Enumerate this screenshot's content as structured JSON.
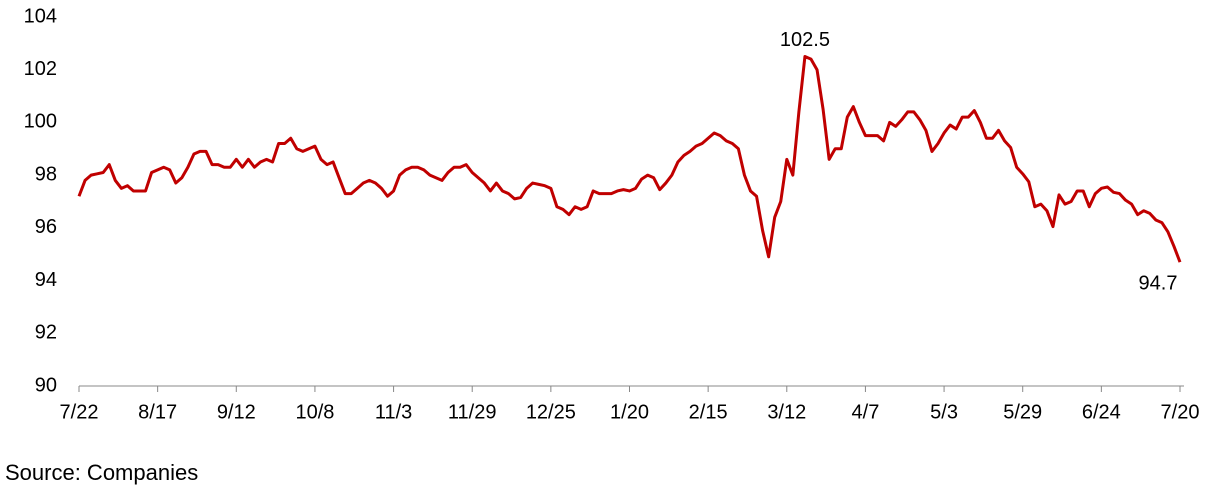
{
  "chart_data": {
    "type": "line",
    "source": "Source: Companies",
    "categories": [
      "7/22",
      null,
      null,
      null,
      null,
      null,
      null,
      null,
      null,
      null,
      null,
      null,
      null,
      "8/17",
      null,
      null,
      null,
      null,
      null,
      null,
      null,
      null,
      null,
      null,
      null,
      null,
      "9/12",
      null,
      null,
      null,
      null,
      null,
      null,
      null,
      null,
      null,
      null,
      null,
      null,
      "10/8",
      null,
      null,
      null,
      null,
      null,
      null,
      null,
      null,
      null,
      null,
      null,
      null,
      "11/3",
      null,
      null,
      null,
      null,
      null,
      null,
      null,
      null,
      null,
      null,
      null,
      null,
      "11/29",
      null,
      null,
      null,
      null,
      null,
      null,
      null,
      null,
      null,
      null,
      null,
      null,
      "12/25",
      null,
      null,
      null,
      null,
      null,
      null,
      null,
      null,
      null,
      null,
      null,
      null,
      "1/20",
      null,
      null,
      null,
      null,
      null,
      null,
      null,
      null,
      null,
      null,
      null,
      null,
      "2/15",
      null,
      null,
      null,
      null,
      null,
      null,
      null,
      null,
      null,
      null,
      null,
      null,
      "3/12",
      null,
      null,
      null,
      null,
      null,
      null,
      null,
      null,
      null,
      null,
      null,
      null,
      "4/7",
      null,
      null,
      null,
      null,
      null,
      null,
      null,
      null,
      null,
      null,
      null,
      null,
      "5/3",
      null,
      null,
      null,
      null,
      null,
      null,
      null,
      null,
      null,
      null,
      null,
      null,
      "5/29",
      null,
      null,
      null,
      null,
      null,
      null,
      null,
      null,
      null,
      null,
      null,
      null,
      "6/24",
      null,
      null,
      null,
      null,
      null,
      null,
      null,
      null,
      null,
      null,
      null,
      null,
      "7/20"
    ],
    "series": [
      {
        "color": "#c00000",
        "values": [
          97.2,
          97.8,
          98.0,
          98.05,
          98.1,
          98.4,
          97.8,
          97.5,
          97.6,
          97.4,
          97.4,
          97.4,
          98.1,
          98.2,
          98.3,
          98.2,
          97.7,
          97.9,
          98.3,
          98.8,
          98.9,
          98.9,
          98.4,
          98.4,
          98.3,
          98.3,
          98.6,
          98.3,
          98.6,
          98.3,
          98.5,
          98.6,
          98.5,
          99.2,
          99.2,
          99.4,
          99.0,
          98.9,
          99.0,
          99.1,
          98.6,
          98.4,
          98.5,
          97.9,
          97.3,
          97.3,
          97.5,
          97.7,
          97.8,
          97.7,
          97.5,
          97.2,
          97.4,
          98.0,
          98.2,
          98.3,
          98.3,
          98.2,
          98.0,
          97.9,
          97.8,
          98.1,
          98.3,
          98.3,
          98.4,
          98.1,
          97.9,
          97.7,
          97.4,
          97.7,
          97.4,
          97.3,
          97.1,
          97.15,
          97.5,
          97.7,
          97.65,
          97.6,
          97.5,
          96.8,
          96.7,
          96.5,
          96.8,
          96.7,
          96.8,
          97.4,
          97.3,
          97.3,
          97.3,
          97.4,
          97.45,
          97.4,
          97.5,
          97.85,
          98.0,
          97.9,
          97.45,
          97.7,
          98.0,
          98.5,
          98.75,
          98.9,
          99.1,
          99.2,
          99.4,
          99.6,
          99.5,
          99.3,
          99.2,
          99.0,
          98.0,
          97.4,
          97.2,
          95.9,
          94.9,
          96.4,
          97.0,
          98.6,
          98.0,
          100.4,
          102.5,
          102.4,
          102.0,
          100.5,
          98.6,
          99.0,
          99.0,
          100.2,
          100.6,
          100.0,
          99.5,
          99.5,
          99.5,
          99.3,
          100.0,
          99.85,
          100.1,
          100.4,
          100.4,
          100.1,
          99.7,
          98.9,
          99.2,
          99.6,
          99.9,
          99.75,
          100.2,
          100.2,
          100.45,
          100.0,
          99.4,
          99.4,
          99.7,
          99.3,
          99.05,
          98.3,
          98.05,
          97.75,
          96.8,
          96.9,
          96.65,
          96.05,
          97.25,
          96.9,
          97.0,
          97.4,
          97.4,
          96.8,
          97.3,
          97.5,
          97.55,
          97.35,
          97.3,
          97.05,
          96.9,
          96.5,
          96.65,
          96.55,
          96.3,
          96.2,
          95.85,
          95.3,
          94.7
        ]
      }
    ],
    "annotations": [
      {
        "value": 102.5,
        "label": "102.5",
        "position": "above"
      },
      {
        "value": 94.7,
        "label": "94.7",
        "position": "below"
      }
    ],
    "ylim": [
      90,
      104
    ],
    "yticks": [
      90,
      92,
      94,
      96,
      98,
      100,
      102,
      104
    ],
    "grid": false
  }
}
